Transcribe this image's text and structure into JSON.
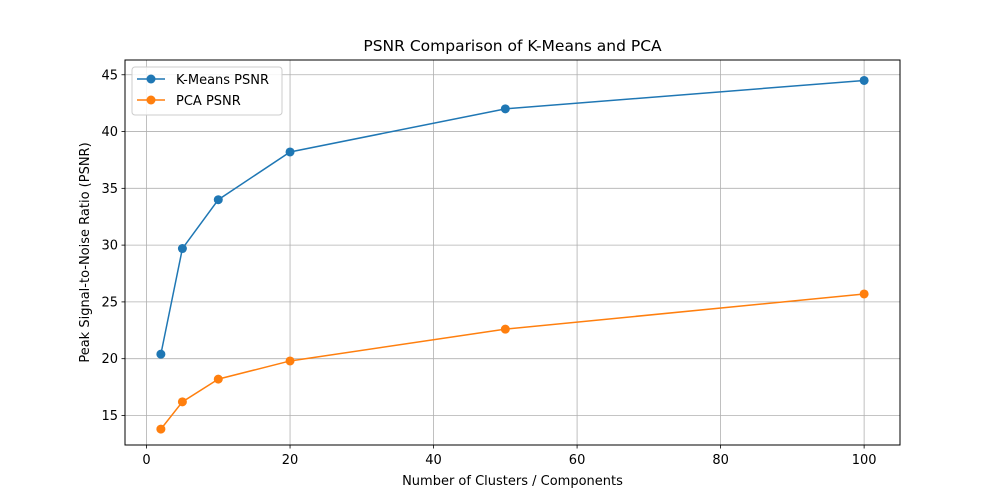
{
  "chart_data": {
    "type": "line",
    "title": "PSNR Comparison of K-Means and PCA",
    "xlabel": "Number of Clusters / Components",
    "ylabel": "Peak Signal-to-Noise Ratio (PSNR)",
    "xlim": [
      -3,
      105
    ],
    "ylim": [
      12.4,
      46.3
    ],
    "xticks": [
      0,
      20,
      40,
      60,
      80,
      100
    ],
    "yticks": [
      15,
      20,
      25,
      30,
      35,
      40,
      45
    ],
    "grid": true,
    "legend_position": "top-left",
    "x": [
      2,
      5,
      10,
      20,
      50,
      100
    ],
    "series": [
      {
        "name": "K-Means PSNR",
        "color": "#1f77b4",
        "marker": "circle",
        "values": [
          20.4,
          29.7,
          34.0,
          38.2,
          42.0,
          44.5
        ]
      },
      {
        "name": "PCA PSNR",
        "color": "#ff7f0e",
        "marker": "circle",
        "values": [
          13.8,
          16.2,
          18.2,
          19.8,
          22.6,
          25.7
        ]
      }
    ]
  }
}
